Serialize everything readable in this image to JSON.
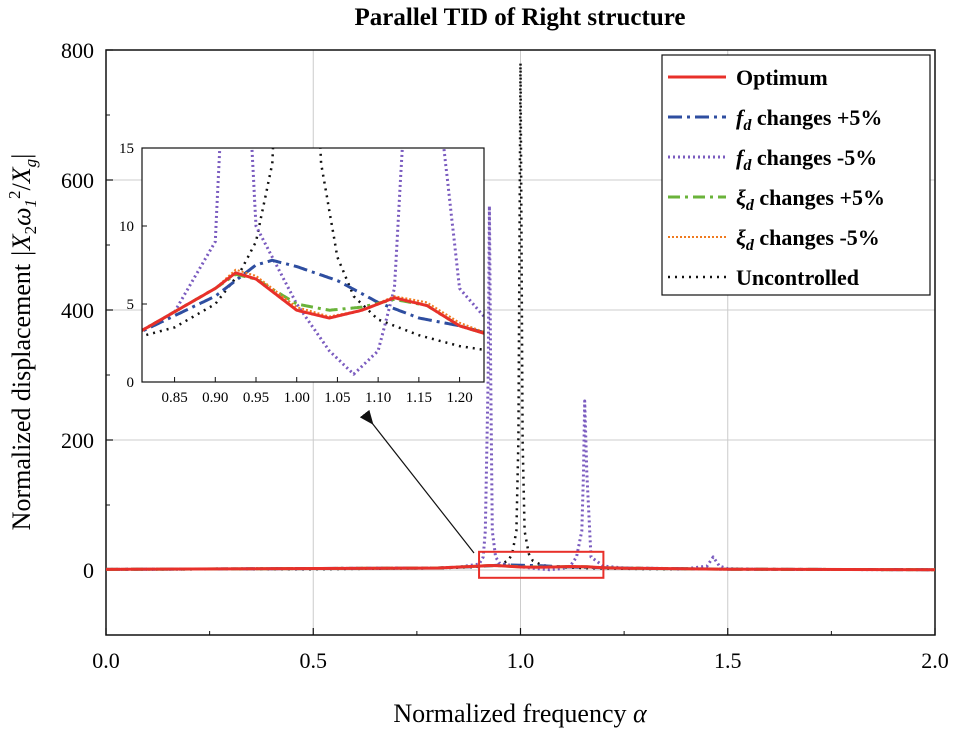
{
  "chart_data": {
    "type": "line",
    "title": "Parallel TID of Right structure",
    "xlabel_prefix": "Normalized frequency",
    "xlabel_symbol": "α",
    "ylabel_prefix": "Normalized displacement",
    "ylabel_math": {
      "open": "|X",
      "s1": "2",
      "omega": "ω",
      "s2": "1",
      "sup": "2",
      "slash": "/",
      "xg": "X",
      "g": "g",
      "close": "|"
    },
    "xlim": [
      0,
      2
    ],
    "ylim": [
      -100,
      800
    ],
    "xticks": [
      "0.0",
      "0.5",
      "1.0",
      "1.5",
      "2.0"
    ],
    "xtick_values": [
      0,
      0.5,
      1.0,
      1.5,
      2.0
    ],
    "yticks": [
      "0",
      "200",
      "400",
      "600",
      "800"
    ],
    "ytick_values": [
      0,
      200,
      400,
      600,
      800
    ],
    "grid": true,
    "legend_position": "top-right",
    "legend": [
      {
        "label": "Optimum",
        "sym": "",
        "sub": "",
        "color": "#e8302a",
        "dash": "",
        "width": 3
      },
      {
        "label": " changes +5%",
        "sym": "f",
        "sub": "d",
        "color": "#2e4ea0",
        "dash": "14,5,3,5",
        "width": 3
      },
      {
        "label": " changes -5%",
        "sym": "f",
        "sub": "d",
        "color": "#7a5bbf",
        "dash": "2,3",
        "width": 3
      },
      {
        "label": " changes +5%",
        "sym": "ξ",
        "sub": "d",
        "color": "#6ab33a",
        "dash": "12,5,3,5",
        "width": 3
      },
      {
        "label": " changes -5%",
        "sym": "ξ",
        "sub": "d",
        "color": "#f07a1e",
        "dash": "2,2",
        "width": 2
      },
      {
        "label": "Uncontrolled",
        "sym": "",
        "sub": "",
        "color": "#111111",
        "dash": "2,5",
        "width": 2.5
      }
    ],
    "series": [
      {
        "legend_index": 0,
        "x": [
          0,
          0.8,
          0.9,
          0.925,
          0.95,
          1.0,
          1.04,
          1.08,
          1.12,
          1.16,
          1.2,
          1.25,
          1.5,
          2.0
        ],
        "y": [
          1,
          3,
          6,
          7,
          6.6,
          4.6,
          4.1,
          4.6,
          5.4,
          4.9,
          3.6,
          2.8,
          1.2,
          0.5
        ]
      },
      {
        "legend_index": 1,
        "x": [
          0,
          0.8,
          0.9,
          0.95,
          0.97,
          1.0,
          1.05,
          1.1,
          1.15,
          1.2,
          1.25,
          1.5,
          2.0
        ],
        "y": [
          1,
          3,
          5.5,
          7.5,
          7.8,
          7.4,
          6.5,
          5.1,
          4.1,
          3.6,
          2.9,
          1.2,
          0.5
        ]
      },
      {
        "legend_index": 2,
        "x": [
          0,
          0.8,
          0.85,
          0.9,
          0.91,
          0.915,
          0.922,
          0.925,
          0.928,
          0.932,
          0.94,
          0.95,
          1.0,
          1.04,
          1.07,
          1.1,
          1.12,
          1.135,
          1.148,
          1.152,
          1.155,
          1.16,
          1.17,
          1.2,
          1.25,
          1.4,
          1.45,
          1.465,
          1.48,
          1.5,
          1.6,
          2.0
        ],
        "y": [
          1,
          3,
          4.5,
          9,
          20,
          60,
          300,
          560,
          300,
          60,
          20,
          10,
          5,
          2,
          0.5,
          2,
          6,
          20,
          60,
          150,
          260,
          150,
          20,
          6,
          3,
          2,
          6,
          20,
          6,
          2,
          1,
          0.5
        ]
      },
      {
        "legend_index": 3,
        "x": [
          0,
          0.8,
          0.9,
          0.925,
          0.95,
          1.0,
          1.04,
          1.08,
          1.12,
          1.16,
          1.2,
          1.25,
          1.5,
          2.0
        ],
        "y": [
          1,
          3,
          6,
          6.9,
          6.6,
          5.0,
          4.6,
          4.8,
          5.3,
          4.9,
          3.6,
          2.8,
          1.2,
          0.5
        ]
      },
      {
        "legend_index": 4,
        "x": [
          0,
          0.8,
          0.9,
          0.925,
          0.95,
          1.0,
          1.04,
          1.08,
          1.12,
          1.16,
          1.2,
          1.25,
          1.5,
          2.0
        ],
        "y": [
          1,
          3,
          6,
          7.2,
          6.8,
          4.8,
          4.2,
          4.6,
          5.5,
          5.1,
          3.8,
          2.8,
          1.2,
          0.5
        ]
      },
      {
        "legend_index": 5,
        "x": [
          0,
          0.5,
          0.8,
          0.85,
          0.9,
          0.93,
          0.95,
          0.97,
          0.98,
          0.99,
          0.995,
          1.0,
          1.005,
          1.01,
          1.02,
          1.03,
          1.05,
          1.07,
          1.1,
          1.15,
          1.2,
          1.3,
          1.5,
          2.0
        ],
        "y": [
          1,
          1.3,
          2.8,
          3.5,
          5,
          7,
          9,
          14,
          25,
          60,
          200,
          780,
          200,
          60,
          25,
          14,
          8,
          5.5,
          4,
          3,
          2.3,
          1.5,
          1.1,
          0.6
        ]
      }
    ],
    "inset": {
      "xlim": [
        0.81,
        1.23
      ],
      "ylim": [
        0,
        15
      ],
      "xticks": [
        "0.85",
        "0.90",
        "0.95",
        "1.00",
        "1.05",
        "1.10",
        "1.15",
        "1.20"
      ],
      "xtick_values": [
        0.85,
        0.9,
        0.95,
        1.0,
        1.05,
        1.1,
        1.15,
        1.2
      ],
      "yticks": [
        "0",
        "5",
        "10",
        "15"
      ],
      "ytick_values": [
        0,
        5,
        10,
        15
      ],
      "zoom_x": [
        0.9,
        1.2
      ],
      "zoom_y": [
        -12,
        28
      ]
    }
  }
}
